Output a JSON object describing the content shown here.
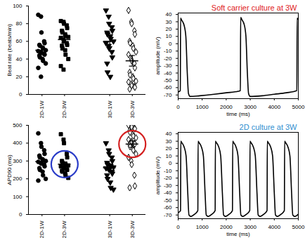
{
  "chart_data": [
    {
      "type": "scatter",
      "y_label": "Beat rate (beats/min)",
      "categories": [
        "2D-1W",
        "2D-3W",
        null,
        "3D-1W",
        "3D-3W"
      ],
      "markers": [
        "circle",
        "square",
        null,
        "triangle-down",
        "diamond-open"
      ],
      "points": [
        [
          90,
          88,
          70,
          60,
          58,
          56,
          55,
          53,
          52,
          50,
          49,
          48,
          47,
          46,
          45,
          44,
          42,
          40,
          38,
          35,
          30,
          20
        ],
        [
          83,
          82,
          80,
          78,
          75,
          72,
          70,
          68,
          66,
          65,
          64,
          62,
          60,
          58,
          56,
          55,
          52,
          50,
          45,
          40,
          32,
          28
        ],
        [],
        [
          95,
          88,
          80,
          76,
          72,
          70,
          68,
          66,
          63,
          60,
          58,
          55,
          52,
          48,
          42,
          35,
          25,
          20
        ],
        [
          95,
          82,
          80,
          72,
          68,
          60,
          58,
          55,
          52,
          48,
          45,
          40,
          38,
          35,
          30,
          25,
          22,
          20,
          18,
          15,
          14,
          12,
          10,
          9,
          8,
          6
        ]
      ],
      "mean": [
        50,
        62,
        null,
        60,
        38
      ],
      "sem": [
        4,
        3.5,
        null,
        6,
        6
      ],
      "ylim": [
        0,
        100
      ],
      "yticks": [
        0,
        20,
        40,
        60,
        80,
        100
      ]
    },
    {
      "type": "scatter",
      "y_label": "APD90 (ms)",
      "categories": [
        "2D-1W",
        "2D-3W",
        null,
        "3D-1W",
        "3D-3W"
      ],
      "markers": [
        "circle",
        "square",
        null,
        "triangle-down",
        "diamond-open"
      ],
      "points": [
        [
          455,
          400,
          380,
          360,
          340,
          330,
          320,
          310,
          305,
          300,
          295,
          290,
          285,
          280,
          270,
          260,
          250,
          240,
          220,
          200,
          190
        ],
        [
          450,
          420,
          400,
          340,
          320,
          300,
          290,
          285,
          280,
          275,
          270,
          265,
          260,
          255,
          250,
          245,
          240,
          230,
          220,
          205
        ],
        [],
        [
          400,
          360,
          340,
          320,
          300,
          290,
          280,
          275,
          270,
          265,
          260,
          255,
          250,
          240,
          230,
          220,
          200,
          180,
          150,
          140
        ],
        [
          500,
          495,
          490,
          485,
          480,
          470,
          460,
          450,
          440,
          430,
          420,
          410,
          405,
          400,
          395,
          390,
          380,
          370,
          360,
          340,
          320,
          300,
          280,
          220,
          160,
          150
        ]
      ],
      "mean": [
        297,
        282,
        null,
        262,
        395
      ],
      "sem": [
        15,
        13,
        null,
        15,
        18
      ],
      "circle_colors": [
        null,
        "#2a3cc8",
        null,
        null,
        "#d42020"
      ],
      "ylim": [
        0,
        500
      ],
      "yticks": [
        0,
        100,
        200,
        300,
        400,
        500
      ]
    },
    {
      "type": "line",
      "title": "Soft carrier culture at 3W",
      "title_color": "#e0201c",
      "color": "#000000",
      "x_label": "time (ms)",
      "y_label": "amplitude (mV)",
      "x": [
        0,
        90,
        100,
        150,
        250,
        320,
        380,
        430,
        500,
        900,
        1500,
        2000,
        2500,
        2590,
        2600,
        2650,
        2750,
        2820,
        2880,
        2930,
        3000,
        3500,
        4000,
        4500,
        4940,
        4950,
        5000
      ],
      "values": [
        -66,
        -64,
        35,
        32,
        25,
        10,
        -40,
        -68,
        -72,
        -71,
        -69,
        -67,
        -65,
        -64,
        36,
        33,
        26,
        10,
        -40,
        -68,
        -72,
        -71,
        -69,
        -67,
        -64,
        35,
        33
      ],
      "xlim": [
        0,
        5000
      ],
      "xticks": [
        0,
        1000,
        2000,
        3000,
        4000,
        5000
      ],
      "ylim": [
        -75,
        42
      ],
      "yticks": [
        -70,
        -60,
        -50,
        -40,
        -30,
        -20,
        -10,
        0,
        10,
        20,
        30,
        40
      ]
    },
    {
      "type": "line",
      "title": "2D culture at 3W",
      "title_color": "#2f8fd0",
      "color": "#000000",
      "x_label": "time (ms)",
      "y_label": "amplitude (mV)",
      "x": [
        0,
        100,
        110,
        150,
        250,
        330,
        400,
        450,
        530,
        680,
        820,
        830,
        870,
        970,
        1050,
        1120,
        1170,
        1250,
        1400,
        1540,
        1550,
        1590,
        1690,
        1770,
        1840,
        1890,
        1970,
        2120,
        2260,
        2270,
        2310,
        2410,
        2490,
        2560,
        2610,
        2690,
        2840,
        2980,
        2990,
        3030,
        3130,
        3210,
        3280,
        3330,
        3410,
        3560,
        3700,
        3710,
        3750,
        3850,
        3930,
        4000,
        4050,
        4130,
        4280,
        4420,
        4430,
        4470,
        4570,
        4650,
        4720,
        4770,
        4850,
        5000
      ],
      "values": [
        -67,
        -64,
        30,
        28,
        22,
        10,
        -40,
        -70,
        -72,
        -69,
        -64,
        30,
        28,
        22,
        10,
        -40,
        -70,
        -72,
        -69,
        -64,
        30,
        28,
        22,
        10,
        -40,
        -70,
        -72,
        -69,
        -64,
        30,
        28,
        22,
        10,
        -40,
        -70,
        -72,
        -69,
        -64,
        30,
        28,
        22,
        10,
        -40,
        -70,
        -72,
        -69,
        -64,
        30,
        28,
        22,
        10,
        -40,
        -70,
        -72,
        -69,
        -64,
        30,
        28,
        22,
        10,
        -40,
        -70,
        -72,
        -69
      ],
      "xlim": [
        0,
        5000
      ],
      "xticks": [
        0,
        1000,
        2000,
        3000,
        4000,
        5000
      ],
      "ylim": [
        -75,
        42
      ],
      "yticks": [
        -70,
        -60,
        -50,
        -40,
        -30,
        -20,
        -10,
        0,
        10,
        20,
        30,
        40
      ]
    }
  ]
}
